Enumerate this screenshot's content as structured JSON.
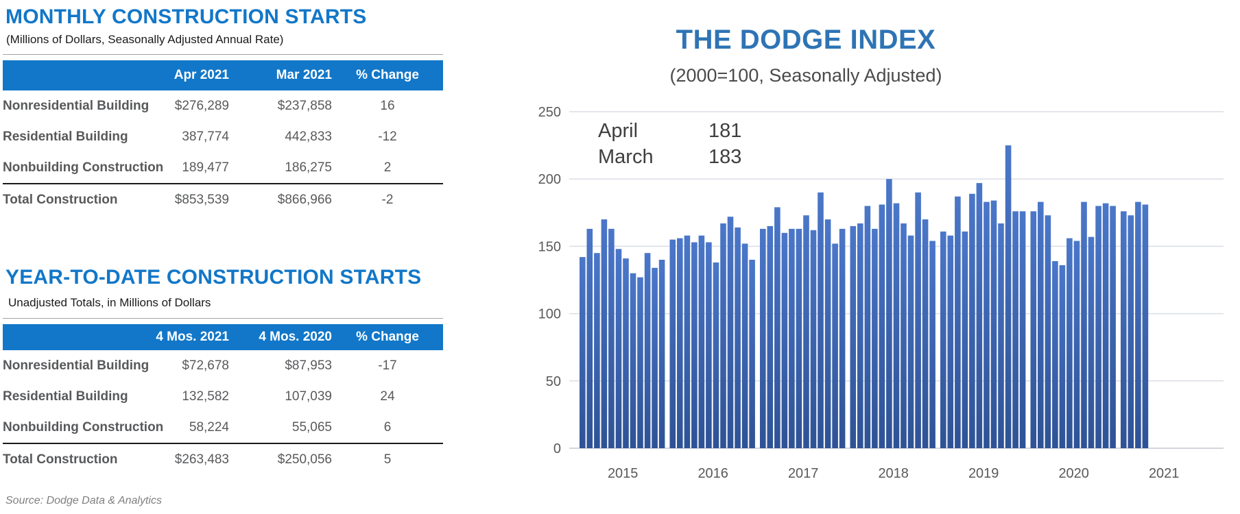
{
  "colors": {
    "accent_blue": "#1277c8",
    "chart_title_blue": "#2e74b5",
    "bar_top": "#4b77c9",
    "bar_bottom": "#2e5295",
    "text_gray": "#58595b",
    "grid_gray": "#dadee6"
  },
  "monthly_table": {
    "title": "MONTHLY CONSTRUCTION STARTS",
    "subtitle": "(Millions of Dollars, Seasonally Adjusted Annual Rate)",
    "columns": [
      "",
      "Apr 2021",
      "Mar 2021",
      "% Change"
    ],
    "rows": [
      [
        "Nonresidential Building",
        "$276,289",
        "$237,858",
        "16"
      ],
      [
        "Residential Building",
        "387,774",
        "442,833",
        "-12"
      ],
      [
        "Nonbuilding Construction",
        "189,477",
        "186,275",
        "2"
      ]
    ],
    "total_row": [
      "Total Construction",
      "$853,539",
      "$866,966",
      "-2"
    ]
  },
  "ytd_table": {
    "title": "YEAR-TO-DATE CONSTRUCTION STARTS",
    "subtitle": "Unadjusted Totals, in Millions of Dollars",
    "columns": [
      "",
      "4 Mos. 2021",
      "4 Mos. 2020",
      "% Change"
    ],
    "rows": [
      [
        "Nonresidential Building",
        "$72,678",
        "$87,953",
        "-17"
      ],
      [
        "Residential Building",
        "132,582",
        "107,039",
        "24"
      ],
      [
        "Nonbuilding Construction",
        "58,224",
        "55,065",
        "6"
      ]
    ],
    "total_row": [
      "Total Construction",
      "$263,483",
      "$250,056",
      "5"
    ]
  },
  "source_note": "Source: Dodge Data & Analytics",
  "chart_data": {
    "type": "bar",
    "title": "THE DODGE INDEX",
    "subtitle": "(2000=100, Seasonally Adjusted)",
    "annotation_rows": [
      {
        "label": "April",
        "value": "181"
      },
      {
        "label": "March",
        "value": "183"
      }
    ],
    "xlabel": "",
    "ylabel": "",
    "ylim": [
      0,
      250
    ],
    "yticks": [
      0,
      50,
      100,
      150,
      200,
      250
    ],
    "grid": true,
    "legend": false,
    "categories": [
      "2015",
      "2016",
      "2017",
      "2018",
      "2019",
      "2020",
      "2021"
    ],
    "series": [
      {
        "name": "Dodge Index (monthly, seasonally adjusted)",
        "values_by_year": [
          {
            "year": "2015",
            "monthly_values": [
              142,
              163,
              145,
              170,
              163,
              148,
              141,
              130,
              127,
              145,
              134,
              140
            ]
          },
          {
            "year": "2016",
            "monthly_values": [
              155,
              156,
              158,
              153,
              158,
              153,
              138,
              167,
              172,
              164,
              152,
              140
            ]
          },
          {
            "year": "2017",
            "monthly_values": [
              163,
              165,
              179,
              160,
              163,
              163,
              173,
              162,
              190,
              170,
              152,
              163
            ]
          },
          {
            "year": "2018",
            "monthly_values": [
              165,
              167,
              180,
              163,
              181,
              200,
              182,
              167,
              158,
              190,
              170,
              154
            ]
          },
          {
            "year": "2019",
            "monthly_values": [
              161,
              158,
              187,
              161,
              189,
              197,
              183,
              184,
              167,
              225,
              176,
              176
            ]
          },
          {
            "year": "2020",
            "monthly_values": [
              176,
              183,
              173,
              139,
              136,
              156,
              154,
              183,
              157,
              180,
              182,
              180
            ]
          },
          {
            "year": "2021",
            "monthly_values": [
              176,
              173,
              183,
              181
            ]
          }
        ]
      }
    ]
  }
}
